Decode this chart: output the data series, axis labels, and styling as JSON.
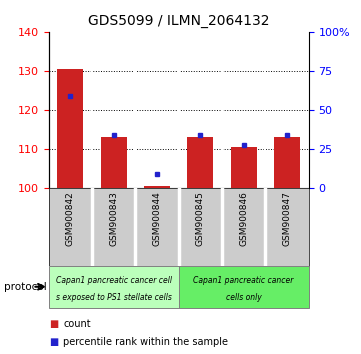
{
  "title": "GDS5099 / ILMN_2064132",
  "samples": [
    "GSM900842",
    "GSM900843",
    "GSM900844",
    "GSM900845",
    "GSM900846",
    "GSM900847"
  ],
  "red_values": [
    130.5,
    113.0,
    100.3,
    113.0,
    110.5,
    113.0
  ],
  "blue_values": [
    123.5,
    113.5,
    103.5,
    113.5,
    111.0,
    113.5
  ],
  "ylim_left": [
    100,
    140
  ],
  "ylim_right": [
    0,
    100
  ],
  "yticks_left": [
    100,
    110,
    120,
    130,
    140
  ],
  "yticks_right": [
    0,
    25,
    50,
    75,
    100
  ],
  "ytick_labels_right": [
    "0",
    "25",
    "50",
    "75",
    "100%"
  ],
  "group1_label_line1": "Capan1 pancreatic cancer cell",
  "group1_label_line2": "s exposed to PS1 stellate cells",
  "group2_label_line1": "Capan1 pancreatic cancer",
  "group2_label_line2": "cells only",
  "group1_color": "#bbffbb",
  "group2_color": "#66ee66",
  "legend_red": "count",
  "legend_blue": "percentile rank within the sample",
  "red_color": "#cc2222",
  "blue_color": "#2222cc",
  "col_divider_color": "#ffffff",
  "tick_bg_color": "#cccccc",
  "plot_bg_color": "#ffffff"
}
